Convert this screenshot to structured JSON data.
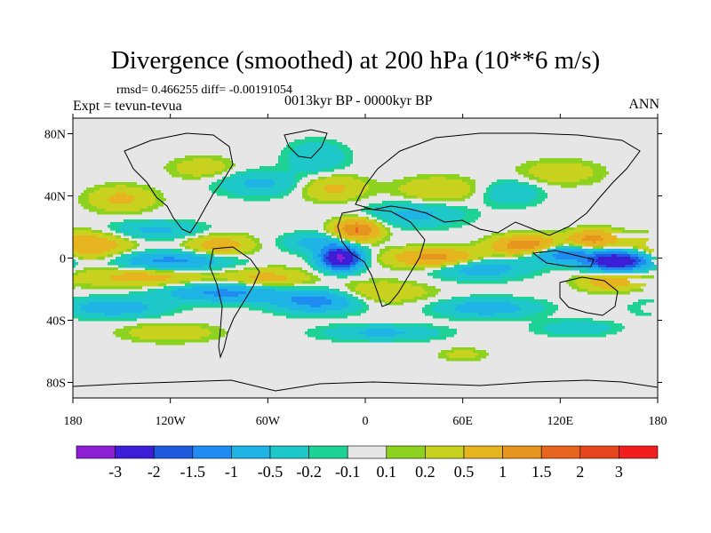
{
  "chart_data": {
    "type": "heatmap",
    "title": "Divergence (smoothed) at 200 hPa (10**6 m/s)",
    "stats": "rmsd= 0.466255 diff= -0.00191054",
    "experiment": "Expt = tevun-tevua",
    "period": "0013kyr BP - 0000kyr BP",
    "season": "ANN",
    "x_ticks": [
      {
        "label": "180",
        "value": -180
      },
      {
        "label": "120W",
        "value": -120
      },
      {
        "label": "60W",
        "value": -60
      },
      {
        "label": "0",
        "value": 0
      },
      {
        "label": "60E",
        "value": 60
      },
      {
        "label": "120E",
        "value": 120
      },
      {
        "label": "180",
        "value": 180
      }
    ],
    "y_ticks": [
      {
        "label": "80N",
        "value": 80
      },
      {
        "label": "40N",
        "value": 40
      },
      {
        "label": "0",
        "value": 0
      },
      {
        "label": "40S",
        "value": -40
      },
      {
        "label": "80S",
        "value": -80
      }
    ],
    "xlim": [
      -180,
      180
    ],
    "ylim": [
      -90,
      90
    ],
    "colorbar": {
      "labels": [
        "-3",
        "-2",
        "-1.5",
        "-1",
        "-0.5",
        "-0.2",
        "-0.1",
        "0.1",
        "0.2",
        "0.5",
        "1",
        "1.5",
        "2",
        "3"
      ],
      "colors": [
        "#8c1ed6",
        "#3b1ed6",
        "#1e5adc",
        "#1e8cf0",
        "#1eb4e6",
        "#1ec8c8",
        "#1ed296",
        "#e6e6e6",
        "#8cd21e",
        "#c8d21e",
        "#e6b41e",
        "#e6961e",
        "#e6641e",
        "#e6461e",
        "#f01e1e"
      ]
    },
    "features": [
      {
        "lon": -15,
        "lat": 0,
        "amp": -3.2,
        "rx": 12,
        "ry": 7
      },
      {
        "lon": 155,
        "lat": -2,
        "amp": -3.0,
        "rx": 18,
        "ry": 6
      },
      {
        "lon": 120,
        "lat": 3,
        "amp": -1.4,
        "rx": 20,
        "ry": 6
      },
      {
        "lon": 70,
        "lat": -6,
        "amp": -0.9,
        "rx": 28,
        "ry": 7
      },
      {
        "lon": -120,
        "lat": -2,
        "amp": -1.2,
        "rx": 35,
        "ry": 6
      },
      {
        "lon": -170,
        "lat": 8,
        "amp": 0.9,
        "rx": 25,
        "ry": 9
      },
      {
        "lon": -135,
        "lat": -12,
        "amp": 0.7,
        "rx": 40,
        "ry": 7
      },
      {
        "lon": -130,
        "lat": 18,
        "amp": -0.6,
        "rx": 30,
        "ry": 6
      },
      {
        "lon": -90,
        "lat": 8,
        "amp": 0.8,
        "rx": 20,
        "ry": 7
      },
      {
        "lon": -85,
        "lat": -22,
        "amp": -1.2,
        "rx": 40,
        "ry": 6
      },
      {
        "lon": -155,
        "lat": -32,
        "amp": -0.8,
        "rx": 30,
        "ry": 6
      },
      {
        "lon": -60,
        "lat": -14,
        "amp": 0.7,
        "rx": 25,
        "ry": 7
      },
      {
        "lon": -30,
        "lat": -28,
        "amp": -1.2,
        "rx": 25,
        "ry": 7
      },
      {
        "lon": -5,
        "lat": 18,
        "amp": 1.6,
        "rx": 14,
        "ry": 7
      },
      {
        "lon": 45,
        "lat": 0,
        "amp": 1.3,
        "rx": 28,
        "ry": 6
      },
      {
        "lon": 100,
        "lat": 8,
        "amp": 1.6,
        "rx": 20,
        "ry": 6
      },
      {
        "lon": 140,
        "lat": 12,
        "amp": 1.2,
        "rx": 15,
        "ry": 6
      },
      {
        "lon": 150,
        "lat": -15,
        "amp": 0.8,
        "rx": 18,
        "ry": 6
      },
      {
        "lon": 75,
        "lat": -32,
        "amp": -0.8,
        "rx": 30,
        "ry": 6
      },
      {
        "lon": 10,
        "lat": -22,
        "amp": 0.5,
        "rx": 30,
        "ry": 7
      },
      {
        "lon": -30,
        "lat": 10,
        "amp": -0.7,
        "rx": 20,
        "ry": 6
      },
      {
        "lon": 30,
        "lat": 28,
        "amp": -0.6,
        "rx": 30,
        "ry": 8
      },
      {
        "lon": 45,
        "lat": 44,
        "amp": 0.5,
        "rx": 25,
        "ry": 8
      },
      {
        "lon": -20,
        "lat": 45,
        "amp": 0.6,
        "rx": 20,
        "ry": 8
      },
      {
        "lon": -65,
        "lat": 48,
        "amp": -0.6,
        "rx": 25,
        "ry": 8
      },
      {
        "lon": -150,
        "lat": 38,
        "amp": 0.6,
        "rx": 20,
        "ry": 8
      },
      {
        "lon": -30,
        "lat": 65,
        "amp": -0.5,
        "rx": 18,
        "ry": 10
      },
      {
        "lon": 90,
        "lat": 42,
        "amp": -0.5,
        "rx": 18,
        "ry": 8
      },
      {
        "lon": 120,
        "lat": 55,
        "amp": 0.4,
        "rx": 25,
        "ry": 8
      },
      {
        "lon": -100,
        "lat": 58,
        "amp": 0.4,
        "rx": 20,
        "ry": 7
      },
      {
        "lon": 10,
        "lat": -48,
        "amp": -0.6,
        "rx": 35,
        "ry": 5
      },
      {
        "lon": -120,
        "lat": -48,
        "amp": 0.4,
        "rx": 30,
        "ry": 6
      },
      {
        "lon": 130,
        "lat": -45,
        "amp": -0.4,
        "rx": 25,
        "ry": 5
      },
      {
        "lon": 60,
        "lat": -62,
        "amp": 0.3,
        "rx": 15,
        "ry": 4
      }
    ]
  }
}
